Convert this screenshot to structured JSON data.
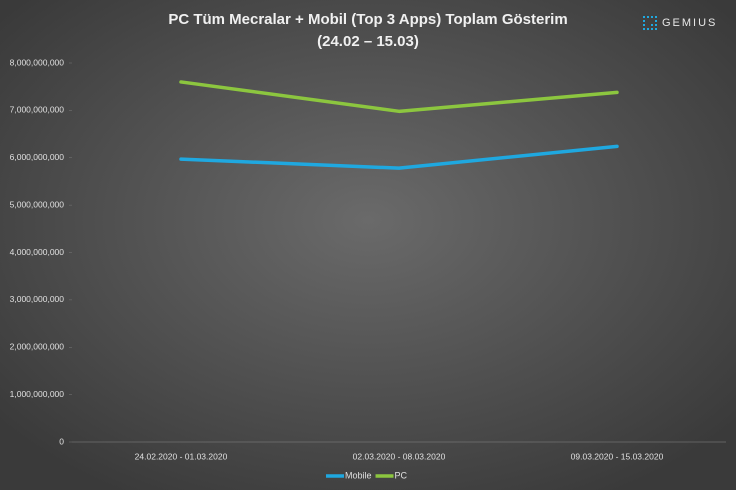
{
  "brand": "GEMIUS",
  "chart_data": {
    "type": "line",
    "title": "PC Tüm Mecralar + Mobil (Top 3 Apps) Toplam Gösterim",
    "subtitle": "(24.02 – 15.03)",
    "categories": [
      "24.02.2020 - 01.03.2020",
      "02.03.2020 - 08.03.2020",
      "09.03.2020 - 15.03.2020"
    ],
    "series": [
      {
        "name": "Mobile",
        "color": "#1fa8e0",
        "values": [
          5970000000,
          5780000000,
          6240000000
        ]
      },
      {
        "name": "PC",
        "color": "#8cc63f",
        "values": [
          7600000000,
          6980000000,
          7380000000
        ]
      }
    ],
    "ylim": [
      0,
      8000000000
    ],
    "yticks": [
      0,
      {
        "value": 1000000000,
        "label": "1,000,000,000"
      },
      {
        "value": 2000000000,
        "label": "2,000,000,000"
      },
      {
        "value": 3000000000,
        "label": "3,000,000,000"
      },
      {
        "value": 4000000000,
        "label": "4,000,000,000"
      },
      {
        "value": 5000000000,
        "label": "5,000,000,000"
      },
      {
        "value": 6000000000,
        "label": "6,000,000,000"
      },
      {
        "value": 7000000000,
        "label": "7,000,000,000"
      },
      {
        "value": 8000000000,
        "label": "8,000,000,000"
      }
    ],
    "grid": false,
    "legend": "bottom"
  }
}
